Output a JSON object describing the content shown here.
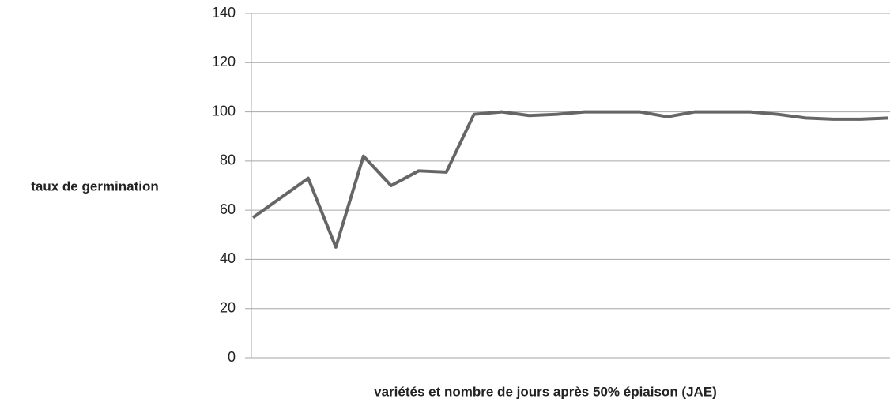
{
  "chart_data": {
    "type": "line",
    "y_label": "taux de germination",
    "x_label": "variétés et nombre de jours après 50% épiaison (JAE)",
    "categories": [
      null,
      null,
      null,
      null,
      null,
      null,
      null,
      null,
      null,
      null,
      null,
      null,
      null,
      null,
      null,
      null,
      null,
      null,
      null,
      null,
      null,
      null,
      null,
      null
    ],
    "series": [
      {
        "name": null,
        "color": "#666666",
        "values": [
          57,
          65,
          73,
          45,
          82,
          70,
          76,
          75.5,
          99,
          100,
          98.5,
          99,
          100,
          100,
          100,
          98,
          100,
          100,
          100,
          99,
          97.5,
          97,
          97,
          97.5
        ]
      }
    ],
    "ylim": [
      0,
      140
    ],
    "yticks": [
      0,
      20,
      40,
      60,
      80,
      100,
      120,
      140
    ],
    "grid": true
  }
}
